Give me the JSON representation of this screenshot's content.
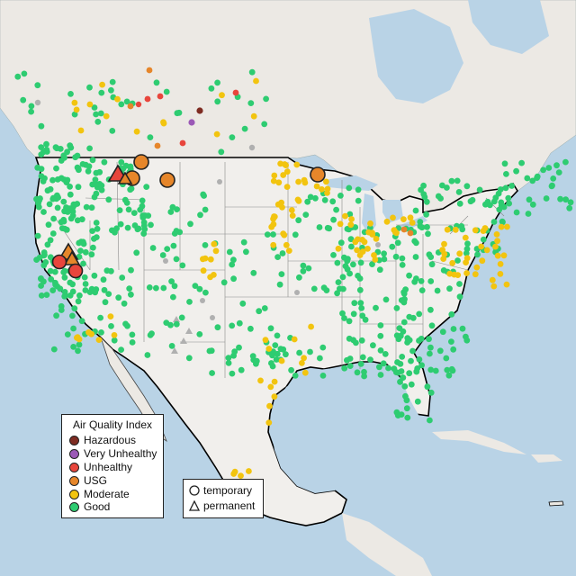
{
  "legend": {
    "title": "Air Quality Index",
    "categories": [
      {
        "label": "Hazardous",
        "color": "#7e2c22"
      },
      {
        "label": "Very Unhealthy",
        "color": "#9b59b6"
      },
      {
        "label": "Unhealthy",
        "color": "#e8453c"
      },
      {
        "label": "USG",
        "color": "#e6862a"
      },
      {
        "label": "Moderate",
        "color": "#f2c40f"
      },
      {
        "label": "Good",
        "color": "#2ecc71"
      }
    ]
  },
  "type_legend": {
    "items": [
      {
        "label": "temporary",
        "shape": "circle"
      },
      {
        "label": "permanent",
        "shape": "triangle"
      }
    ]
  },
  "colors": {
    "ocean": "#b9d3e6",
    "land": "#ece9e4",
    "us_land": "#f1efec",
    "border": "#000000",
    "state_line": "#8a8a8a",
    "no_data": "#b0b0b0"
  }
}
